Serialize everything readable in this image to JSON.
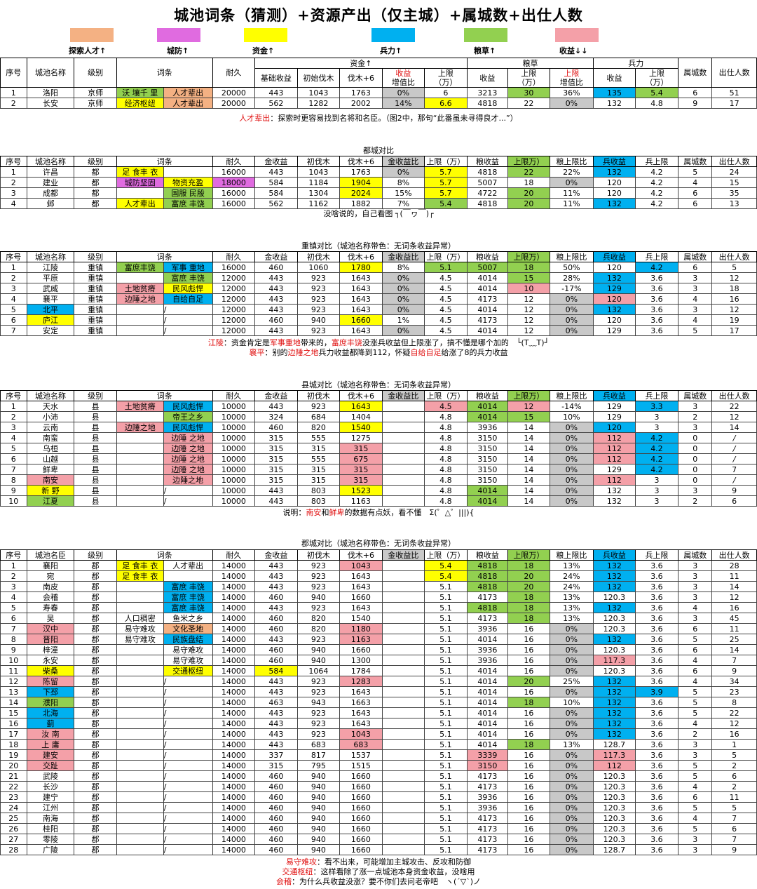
{
  "title": "城池词条（猜测）+资源产出（仅主城）+属城数+出仕人数",
  "legend": [
    {
      "label": "探索人才↑",
      "color": "#f4b183"
    },
    {
      "label": "城防↑",
      "color": "#e06be0"
    },
    {
      "label": "资金↑",
      "color": "#ffff00"
    },
    {
      "label": "兵力↑",
      "color": "#00b0f0"
    },
    {
      "label": "粮草↑",
      "color": "#92d050"
    },
    {
      "label": "收益↓↓",
      "color": "#f4a0a8"
    }
  ],
  "headers": {
    "seq": "序号",
    "name": "城池名称",
    "name_alt": "城池名臣",
    "level": "级别",
    "trait": "词条",
    "dur": "耐久",
    "gold_group": "资金↑",
    "grain_group": "粮草",
    "troop_group": "兵力",
    "base_gold": "基础收益",
    "init_fm": "初始伐木",
    "fm6": "伐木+6",
    "gold_ratio_a": "收益",
    "gold_ratio_b": "增值比",
    "cap_a": "上限",
    "cap_b": "（万）",
    "g_income": "收益",
    "g_cap_a": "上限",
    "g_cap_b": "（万）",
    "g_limit_a": "上限",
    "g_limit_b": "增值比",
    "t_income": "收益",
    "t_cap_a": "上限",
    "t_cap_b": "（万）",
    "sub": "属城数",
    "off": "出仕人数",
    "gold_income": "金收益",
    "init_fm2": "初伐木",
    "gold_ratio": "金收益比",
    "cap_w": "上限（万）",
    "grain_income": "粮收益",
    "grain_cap": "上限万）",
    "grain_ratio": "粮上限比",
    "troop_income": "兵收益",
    "troop_cap": "兵上限"
  },
  "s1": {
    "rows": [
      [
        "1",
        "洛阳",
        "京师",
        [
          "沃 壤千 里",
          "人才辈出"
        ],
        "20000",
        "443",
        "1043",
        "1763",
        "0%",
        "6",
        "3213",
        "30",
        "36%",
        "135",
        "5.4",
        "6",
        "51"
      ],
      [
        "2",
        "长安",
        "京师",
        [
          "经济枢纽",
          "人才辈出"
        ],
        "20000",
        "562",
        "1282",
        "2002",
        "14%",
        "6.6",
        "4818",
        "22",
        "0%",
        "132",
        "4.8",
        "9",
        "17"
      ]
    ],
    "note": {
      "key": "人才辈出",
      "text": "：探索时更容易找到名将和名臣。（图2中，那句“此番虽未寻得良才...”）"
    }
  },
  "s2": {
    "caption": "都城对比",
    "rows": [
      [
        "1",
        "许昌",
        "都",
        [
          "足 食丰 衣",
          ""
        ],
        "16000",
        "443",
        "1043",
        "1763",
        "0%",
        "5.7",
        "4818",
        "22",
        "22%",
        "132",
        "4.2",
        "5",
        "24"
      ],
      [
        "2",
        "建业",
        "都",
        [
          "城防坚固",
          "物资充盈"
        ],
        "18000",
        "584",
        "1184",
        "1904",
        "8%",
        "5.7",
        "5007",
        "18",
        "0%",
        "120",
        "4.2",
        "4",
        "15"
      ],
      [
        "3",
        "成都",
        "都",
        [
          "",
          "国服 民殷"
        ],
        "16000",
        "584",
        "1304",
        "2024",
        "15%",
        "5.7",
        "4722",
        "20",
        "11%",
        "120",
        "4.2",
        "6",
        "35"
      ],
      [
        "4",
        "邺",
        "都",
        [
          "人才辈出",
          "富庶 丰饶"
        ],
        "16000",
        "562",
        "1162",
        "1882",
        "7%",
        "5.4",
        "4818",
        "20",
        "11%",
        "132",
        "4.2",
        "6",
        "13"
      ]
    ],
    "note": "没啥说的，自己看图 ┐(￣ヮ￣)┌"
  },
  "s3": {
    "caption": "重镇对比（城池名称带色：无词条收益异常）",
    "rows": [
      [
        "1",
        "江陵",
        "重镇",
        [
          "富庶丰饶",
          "军事 重地"
        ],
        "16000",
        "460",
        "1060",
        "1780",
        "8%",
        "5.1",
        "5007",
        "18",
        "50%",
        "120",
        "4.2",
        "6",
        "5"
      ],
      [
        "2",
        "平原",
        "重镇",
        [
          "",
          "富庶 丰饶"
        ],
        "12000",
        "443",
        "923",
        "1643",
        "0%",
        "4.5",
        "4014",
        "15",
        "28%",
        "132",
        "3.6",
        "3",
        "12"
      ],
      [
        "3",
        "武威",
        "重镇",
        [
          "土地贫瘠",
          "民风彪悍"
        ],
        "12000",
        "443",
        "923",
        "1643",
        "0%",
        "4.5",
        "4014",
        "10",
        "-17%",
        "129",
        "3.6",
        "3",
        "18"
      ],
      [
        "4",
        "襄平",
        "重镇",
        [
          "边陲之地",
          "自给自足"
        ],
        "12000",
        "443",
        "923",
        "1643",
        "0%",
        "4.5",
        "4173",
        "12",
        "0%",
        "120",
        "3.6",
        "4",
        "16"
      ],
      [
        "5",
        "北平",
        "重镇",
        [
          "",
          "/"
        ],
        "12000",
        "443",
        "923",
        "1643",
        "0%",
        "4.5",
        "4014",
        "12",
        "0%",
        "132",
        "3.6",
        "3",
        "12"
      ],
      [
        "6",
        "庐江",
        "重镇",
        [
          "",
          "/"
        ],
        "12000",
        "460",
        "940",
        "1660",
        "1%",
        "4.5",
        "4173",
        "12",
        "0%",
        "120",
        "3.6",
        "4",
        "19"
      ],
      [
        "7",
        "安定",
        "重镇",
        [
          "",
          "/"
        ],
        "12000",
        "443",
        "923",
        "1643",
        "0%",
        "4.5",
        "4014",
        "12",
        "0%",
        "129",
        "3.6",
        "5",
        "17"
      ]
    ],
    "note1": {
      "a": "江陵",
      "b": "：资金肯定是",
      "c": "军事重地",
      "d": "带来的，",
      "e": "富庶丰饶",
      "f": "没涨兵收益但上限涨了，搞不懂是哪个加的　└(T﹏T)┘"
    },
    "note2": {
      "a": "襄平",
      "b": "：别的",
      "c": "边陲之地",
      "d": "兵力收益都降到112，怀疑",
      "e": "自给自足",
      "f": "给涨了8的兵力收益"
    }
  },
  "s4": {
    "caption": "县城对比（城池名称带色：无词条收益异常）",
    "rows": [
      [
        "1",
        "天水",
        "县",
        [
          "土地贫瘠",
          "民风彪悍"
        ],
        "10000",
        "443",
        "923",
        "1643",
        "",
        "4.5",
        "4014",
        "12",
        "-14%",
        "129",
        "3.3",
        "3",
        "22"
      ],
      [
        "2",
        "小沛",
        "县",
        [
          "",
          "帝王之乡"
        ],
        "10000",
        "324",
        "684",
        "1404",
        "",
        "4.8",
        "4014",
        "15",
        "10%",
        "129",
        "3",
        "2",
        "12"
      ],
      [
        "3",
        "云南",
        "县",
        [
          "边陲之地",
          "民风彪悍"
        ],
        "10000",
        "460",
        "820",
        "1540",
        "",
        "4.8",
        "3936",
        "14",
        "0%",
        "120",
        "3",
        "3",
        "14"
      ],
      [
        "4",
        "南蛮",
        "县",
        [
          "",
          "边陲 之地"
        ],
        "10000",
        "315",
        "555",
        "1275",
        "",
        "4.8",
        "3150",
        "14",
        "0%",
        "112",
        "4.2",
        "0",
        "/"
      ],
      [
        "5",
        "乌桓",
        "县",
        [
          "",
          "边陲 之地"
        ],
        "10000",
        "315",
        "315",
        "315",
        "",
        "4.8",
        "3150",
        "14",
        "0%",
        "112",
        "4.2",
        "0",
        "/"
      ],
      [
        "6",
        "山越",
        "县",
        [
          "",
          "边陲 之地"
        ],
        "10000",
        "315",
        "555",
        "675",
        "",
        "4.8",
        "3150",
        "14",
        "0%",
        "112",
        "4.2",
        "0",
        "/"
      ],
      [
        "7",
        "鲜卑",
        "县",
        [
          "",
          "边陲 之地"
        ],
        "10000",
        "315",
        "315",
        "315",
        "",
        "4.8",
        "3150",
        "14",
        "0%",
        "129",
        "4.2",
        "0",
        "7"
      ],
      [
        "8",
        "南安",
        "县",
        [
          "",
          "边陲之地"
        ],
        "10000",
        "315",
        "315",
        "315",
        "",
        "4.8",
        "3150",
        "14",
        "0%",
        "112",
        "3",
        "0",
        "/"
      ],
      [
        "9",
        "新 野",
        "县",
        [
          "",
          "/"
        ],
        "10000",
        "443",
        "803",
        "1523",
        "",
        "4.8",
        "4014",
        "14",
        "0%",
        "132",
        "3",
        "3",
        "9"
      ],
      [
        "10",
        "江夏",
        "县",
        [
          "",
          "/"
        ],
        "10000",
        "443",
        "803",
        "1163",
        "",
        "4.8",
        "4014",
        "14",
        "0%",
        "132",
        "3",
        "2",
        "6"
      ]
    ],
    "note": {
      "a": "说明：",
      "b": "南安",
      "c": "和",
      "d": "鲜卑",
      "e": "的数据有点妖，看不懂　Σ(゜△゜|||){"
    }
  },
  "s5": {
    "caption": "郡城对比（城池名称带色：无词条收益异常）",
    "rows": [
      [
        "1",
        "襄阳",
        "郡",
        [
          "足 食丰 衣",
          "人才辈出"
        ],
        "14000",
        "443",
        "923",
        "1043",
        "",
        "5.4",
        "4818",
        "18",
        "13%",
        "132",
        "3.6",
        "3",
        "28"
      ],
      [
        "2",
        "宛",
        "郡",
        [
          "足 食丰 衣",
          ""
        ],
        "14000",
        "443",
        "923",
        "1643",
        "",
        "5.4",
        "4818",
        "20",
        "24%",
        "132",
        "3.6",
        "3",
        "11"
      ],
      [
        "3",
        "南皮",
        "郡",
        [
          "",
          "富庶 丰饶"
        ],
        "14000",
        "443",
        "923",
        "1643",
        "",
        "5.1",
        "4818",
        "20",
        "24%",
        "132",
        "3.6",
        "3",
        "14"
      ],
      [
        "4",
        "会稽",
        "郡",
        [
          "",
          "富庶 丰饶"
        ],
        "14000",
        "460",
        "940",
        "1660",
        "",
        "5.1",
        "4173",
        "18",
        "13%",
        "120.3",
        "3.6",
        "3",
        "12"
      ],
      [
        "5",
        "寿春",
        "郡",
        [
          "",
          "富庶 丰饶"
        ],
        "14000",
        "443",
        "923",
        "1643",
        "",
        "5.1",
        "4818",
        "18",
        "13%",
        "132",
        "3.6",
        "4",
        "16"
      ],
      [
        "6",
        "吴",
        "郡",
        [
          "人口稠密",
          "鱼米之乡"
        ],
        "14000",
        "460",
        "820",
        "1540",
        "",
        "5.1",
        "4173",
        "18",
        "13%",
        "120.3",
        "3.6",
        "3",
        "45"
      ],
      [
        "7",
        "汉中",
        "郡",
        [
          "易守难攻",
          "文化圣地"
        ],
        "14000",
        "460",
        "820",
        "1180",
        "",
        "5.1",
        "3936",
        "16",
        "0%",
        "120.3",
        "3.6",
        "6",
        "11"
      ],
      [
        "8",
        "晋阳",
        "郡",
        [
          "易守难攻",
          "民族盘结"
        ],
        "14000",
        "443",
        "923",
        "1163",
        "",
        "5.1",
        "4014",
        "16",
        "0%",
        "132",
        "3.6",
        "5",
        "25"
      ],
      [
        "9",
        "梓潼",
        "郡",
        [
          "",
          "易守难攻"
        ],
        "14000",
        "460",
        "940",
        "1660",
        "",
        "5.1",
        "3936",
        "16",
        "0%",
        "120.3",
        "3.6",
        "6",
        "14"
      ],
      [
        "10",
        "永安",
        "郡",
        [
          "",
          "易守难攻"
        ],
        "14000",
        "460",
        "940",
        "1300",
        "",
        "5.1",
        "3936",
        "16",
        "0%",
        "117.3",
        "3.6",
        "4",
        "7"
      ],
      [
        "11",
        "柴桑",
        "郡",
        [
          "",
          "交通枢纽"
        ],
        "14000",
        "584",
        "1064",
        "1784",
        "",
        "5.1",
        "4014",
        "16",
        "0%",
        "120.3",
        "3.6",
        "6",
        "9"
      ],
      [
        "12",
        "陈留",
        "郡",
        [
          "",
          "/"
        ],
        "14000",
        "443",
        "923",
        "1283",
        "",
        "5.1",
        "4014",
        "20",
        "25%",
        "132",
        "3.6",
        "4",
        "34"
      ],
      [
        "13",
        "下邳",
        "郡",
        [
          "",
          "/"
        ],
        "14000",
        "443",
        "923",
        "1643",
        "",
        "5.1",
        "4014",
        "16",
        "0%",
        "132",
        "3.9",
        "5",
        "23"
      ],
      [
        "14",
        "濮阳",
        "郡",
        [
          "",
          "/"
        ],
        "14000",
        "463",
        "943",
        "1663",
        "",
        "5.1",
        "4014",
        "18",
        "10%",
        "132",
        "3.6",
        "5",
        "8"
      ],
      [
        "15",
        "北海",
        "郡",
        [
          "",
          "/"
        ],
        "14000",
        "443",
        "923",
        "1643",
        "",
        "5.1",
        "4014",
        "16",
        "0%",
        "132",
        "3.6",
        "5",
        "22"
      ],
      [
        "16",
        "蓟",
        "郡",
        [
          "",
          "/"
        ],
        "14000",
        "443",
        "923",
        "1643",
        "",
        "5.1",
        "4014",
        "16",
        "0%",
        "132",
        "3.6",
        "4",
        "12"
      ],
      [
        "17",
        "汝 南",
        "郡",
        [
          "",
          "/"
        ],
        "14000",
        "443",
        "923",
        "1043",
        "",
        "5.1",
        "4014",
        "16",
        "0%",
        "132",
        "3.6",
        "2",
        "16"
      ],
      [
        "18",
        "上 庸",
        "郡",
        [
          "",
          "/"
        ],
        "14000",
        "443",
        "683",
        "683",
        "",
        "5.1",
        "4014",
        "18",
        "13%",
        "128.7",
        "3.6",
        "3",
        "1"
      ],
      [
        "19",
        "建安",
        "郡",
        [
          "",
          "/"
        ],
        "14000",
        "337",
        "817",
        "1537",
        "",
        "5.1",
        "3339",
        "16",
        "0%",
        "117.3",
        "3.6",
        "3",
        "5"
      ],
      [
        "20",
        "交趾",
        "郡",
        [
          "",
          "/"
        ],
        "14000",
        "315",
        "795",
        "1515",
        "",
        "5.1",
        "3150",
        "16",
        "0%",
        "112",
        "3.6",
        "5",
        "2"
      ],
      [
        "21",
        "武陵",
        "郡",
        [
          "",
          "/"
        ],
        "14000",
        "460",
        "940",
        "1660",
        "",
        "5.1",
        "4173",
        "16",
        "0%",
        "120.3",
        "3.6",
        "5",
        "6"
      ],
      [
        "22",
        "长沙",
        "郡",
        [
          "",
          "/"
        ],
        "14000",
        "460",
        "940",
        "1660",
        "",
        "5.1",
        "4173",
        "16",
        "0%",
        "120.3",
        "3.6",
        "4",
        "2"
      ],
      [
        "23",
        "建宁",
        "郡",
        [
          "",
          "/"
        ],
        "14000",
        "460",
        "940",
        "1660",
        "",
        "5.1",
        "3936",
        "16",
        "0%",
        "120.3",
        "3.6",
        "6",
        "11"
      ],
      [
        "24",
        "江州",
        "郡",
        [
          "",
          "/"
        ],
        "14000",
        "460",
        "940",
        "1660",
        "",
        "5.1",
        "3936",
        "16",
        "0%",
        "120.3",
        "3.6",
        "5",
        "5"
      ],
      [
        "25",
        "南海",
        "郡",
        [
          "",
          "/"
        ],
        "14000",
        "460",
        "940",
        "1660",
        "",
        "5.1",
        "4173",
        "16",
        "0%",
        "120.3",
        "3.6",
        "4",
        "7"
      ],
      [
        "26",
        "桂阳",
        "郡",
        [
          "",
          "/"
        ],
        "14000",
        "460",
        "940",
        "1660",
        "",
        "5.1",
        "4173",
        "16",
        "0%",
        "120.3",
        "3.6",
        "5",
        "6"
      ],
      [
        "27",
        "零陵",
        "郡",
        [
          "",
          "/"
        ],
        "14000",
        "460",
        "940",
        "1660",
        "",
        "5.1",
        "4173",
        "16",
        "0%",
        "120.3",
        "3.6",
        "3",
        "7"
      ],
      [
        "28",
        "广陵",
        "郡",
        [
          "",
          "/"
        ],
        "14000",
        "460",
        "940",
        "1660",
        "",
        "5.1",
        "4173",
        "16",
        "0%",
        "128.7",
        "3.6",
        "3",
        "9"
      ]
    ],
    "notes": [
      {
        "a": "易守难攻",
        "b": "：看不出来，可能增加主城攻击、反攻和防御"
      },
      {
        "a": "交通枢纽",
        "b": "：这样看除了涨一点城池本身资金收益，没啥用"
      },
      {
        "a": "会稽",
        "b": "：为什么兵收益没涨？要不你们去问老帝吧　ヽ(´▽`)ノ"
      }
    ]
  }
}
